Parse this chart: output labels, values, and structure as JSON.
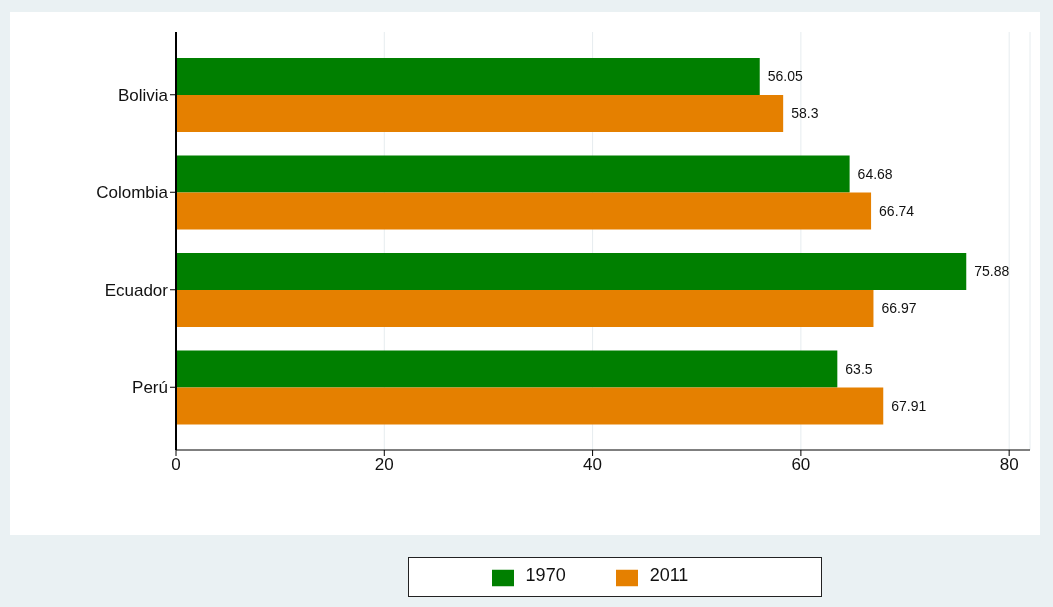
{
  "chart_data": {
    "type": "bar",
    "orientation": "horizontal",
    "categories": [
      "Bolivia",
      "Colombia",
      "Ecuador",
      "Perú"
    ],
    "series": [
      {
        "name": "1970",
        "color": "#007f00",
        "values": [
          56.05,
          64.68,
          75.88,
          63.5
        ]
      },
      {
        "name": "2011",
        "color": "#e58000",
        "values": [
          58.3,
          66.74,
          66.97,
          67.91
        ]
      }
    ],
    "xlim": [
      0,
      82
    ],
    "xticks": [
      0,
      20,
      40,
      60,
      80
    ],
    "grid": "x",
    "legend": "bottom",
    "data_labels": true
  }
}
